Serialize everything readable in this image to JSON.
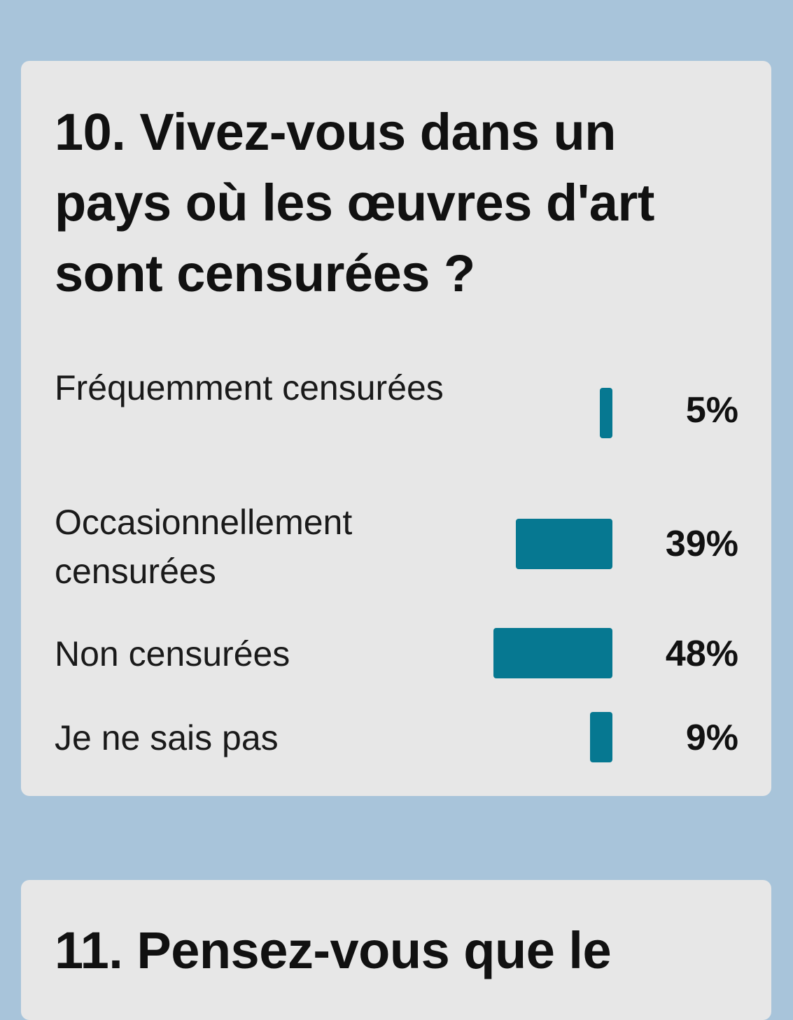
{
  "card1": {
    "question": "10. Vivez-vous dans un pays où les œuvres d'art sont censurées ?"
  },
  "card2": {
    "question": "11. Pensez-vous que le"
  },
  "chart_data": {
    "type": "bar",
    "orientation": "horizontal",
    "categories": [
      "Fréquemment censurées",
      "Occasionnellement censurées",
      "Non censurées",
      "Je ne sais pas"
    ],
    "values": [
      5,
      39,
      48,
      9
    ],
    "value_labels": [
      "5%",
      "39%",
      "48%",
      "9%"
    ],
    "title": "10. Vivez-vous dans un pays où les œuvres d'art sont censurées ?",
    "xlabel": "",
    "ylabel": "",
    "xlim": [
      0,
      48
    ],
    "grid": false,
    "bar_color": "#067891"
  }
}
